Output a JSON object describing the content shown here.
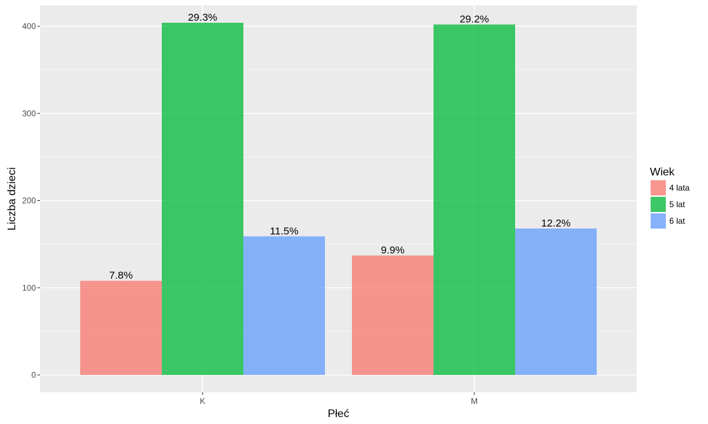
{
  "chart_data": {
    "type": "bar",
    "title": "",
    "xlabel": "Płeć",
    "ylabel": "Liczba dzieci",
    "categories": [
      "K",
      "M"
    ],
    "ylim": [
      0,
      425
    ],
    "yticks": [
      0,
      100,
      200,
      300,
      400
    ],
    "ytick_labels": [
      "0",
      "100",
      "200",
      "300",
      "400"
    ],
    "grid": true,
    "legend": {
      "title": "Wiek",
      "position": "right"
    },
    "series": [
      {
        "name": "4 lata",
        "color": "#F8766D",
        "values": [
          108,
          137
        ],
        "labels": [
          "7.8%",
          "9.9%"
        ]
      },
      {
        "name": "5 lat",
        "color": "#00BA38",
        "values": [
          404,
          402
        ],
        "labels": [
          "29.3%",
          "29.2%"
        ]
      },
      {
        "name": "6 lat",
        "color": "#619CFF",
        "values": [
          159,
          168
        ],
        "labels": [
          "11.5%",
          "12.2%"
        ]
      }
    ]
  }
}
